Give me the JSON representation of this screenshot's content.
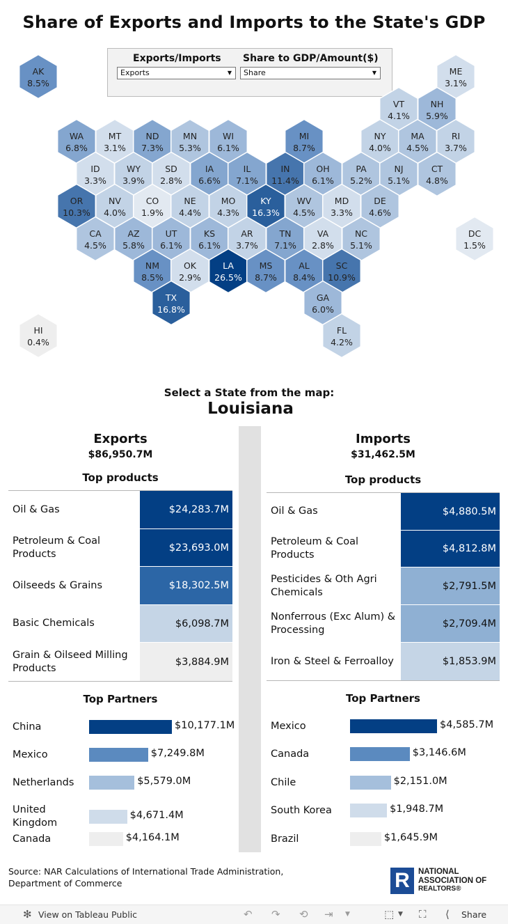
{
  "title": "Share of Exports and Imports to the State's GDP",
  "filters": {
    "flow_label": "Exports/Imports",
    "flow_value": "Exports",
    "measure_label": "Share to GDP/Amount($)",
    "measure_value": "Share"
  },
  "colors": {
    "darkest": "#033f84",
    "dark": "#2c66a6",
    "mid": "#5b8abf",
    "light_mid": "#8fb0d3",
    "light": "#c5d5e6",
    "lightest": "#eeeeee"
  },
  "chart_data": [
    {
      "type": "hex-map",
      "title": "Share of Exports and Imports to the State's GDP",
      "measure": "Exports share of GDP",
      "states": [
        {
          "abbr": "AK",
          "value": "8.5%"
        },
        {
          "abbr": "ME",
          "value": "3.1%"
        },
        {
          "abbr": "VT",
          "value": "4.1%"
        },
        {
          "abbr": "NH",
          "value": "5.9%"
        },
        {
          "abbr": "WA",
          "value": "6.8%"
        },
        {
          "abbr": "MT",
          "value": "3.1%"
        },
        {
          "abbr": "ND",
          "value": "7.3%"
        },
        {
          "abbr": "MN",
          "value": "5.3%"
        },
        {
          "abbr": "WI",
          "value": "6.1%"
        },
        {
          "abbr": "MI",
          "value": "8.7%"
        },
        {
          "abbr": "NY",
          "value": "4.0%"
        },
        {
          "abbr": "MA",
          "value": "4.5%"
        },
        {
          "abbr": "RI",
          "value": "3.7%"
        },
        {
          "abbr": "ID",
          "value": "3.3%"
        },
        {
          "abbr": "WY",
          "value": "3.9%"
        },
        {
          "abbr": "SD",
          "value": "2.8%"
        },
        {
          "abbr": "IA",
          "value": "6.6%"
        },
        {
          "abbr": "IL",
          "value": "7.1%"
        },
        {
          "abbr": "IN",
          "value": "11.4%"
        },
        {
          "abbr": "OH",
          "value": "6.1%"
        },
        {
          "abbr": "PA",
          "value": "5.2%"
        },
        {
          "abbr": "NJ",
          "value": "5.1%"
        },
        {
          "abbr": "CT",
          "value": "4.8%"
        },
        {
          "abbr": "OR",
          "value": "10.3%"
        },
        {
          "abbr": "NV",
          "value": "4.0%"
        },
        {
          "abbr": "CO",
          "value": "1.9%"
        },
        {
          "abbr": "NE",
          "value": "4.4%"
        },
        {
          "abbr": "MO",
          "value": "4.3%"
        },
        {
          "abbr": "KY",
          "value": "16.3%"
        },
        {
          "abbr": "WV",
          "value": "4.5%"
        },
        {
          "abbr": "MD",
          "value": "3.3%"
        },
        {
          "abbr": "DE",
          "value": "4.6%"
        },
        {
          "abbr": "DC",
          "value": "1.5%"
        },
        {
          "abbr": "CA",
          "value": "4.5%"
        },
        {
          "abbr": "AZ",
          "value": "5.8%"
        },
        {
          "abbr": "UT",
          "value": "6.1%"
        },
        {
          "abbr": "KS",
          "value": "6.1%"
        },
        {
          "abbr": "AR",
          "value": "3.7%"
        },
        {
          "abbr": "TN",
          "value": "7.1%"
        },
        {
          "abbr": "VA",
          "value": "2.8%"
        },
        {
          "abbr": "NC",
          "value": "5.1%"
        },
        {
          "abbr": "NM",
          "value": "8.5%"
        },
        {
          "abbr": "OK",
          "value": "2.9%"
        },
        {
          "abbr": "LA",
          "value": "26.5%"
        },
        {
          "abbr": "MS",
          "value": "8.7%"
        },
        {
          "abbr": "AL",
          "value": "8.4%"
        },
        {
          "abbr": "SC",
          "value": "10.9%"
        },
        {
          "abbr": "TX",
          "value": "16.8%"
        },
        {
          "abbr": "GA",
          "value": "6.0%"
        },
        {
          "abbr": "HI",
          "value": "0.4%"
        },
        {
          "abbr": "FL",
          "value": "4.2%"
        }
      ]
    },
    {
      "type": "table",
      "title": "Exports Top products",
      "unit": "$M",
      "rows": [
        {
          "label": "Oil & Gas",
          "value": 24283.7,
          "display": "$24,283.7M"
        },
        {
          "label": "Petroleum & Coal Products",
          "value": 23693.0,
          "display": "$23,693.0M"
        },
        {
          "label": "Oilseeds & Grains",
          "value": 18302.5,
          "display": "$18,302.5M"
        },
        {
          "label": "Basic Chemicals",
          "value": 6098.7,
          "display": "$6,098.7M"
        },
        {
          "label": "Grain & Oilseed Milling Products",
          "value": 3884.9,
          "display": "$3,884.9M"
        }
      ]
    },
    {
      "type": "table",
      "title": "Imports Top products",
      "unit": "$M",
      "rows": [
        {
          "label": "Oil & Gas",
          "value": 4880.5,
          "display": "$4,880.5M"
        },
        {
          "label": "Petroleum & Coal Products",
          "value": 4812.8,
          "display": "$4,812.8M"
        },
        {
          "label": "Pesticides & Oth Agri Chemicals",
          "value": 2791.5,
          "display": "$2,791.5M"
        },
        {
          "label": "Nonferrous (Exc Alum) & Processing",
          "value": 2709.4,
          "display": "$2,709.4M"
        },
        {
          "label": "Iron & Steel & Ferroalloy",
          "value": 1853.9,
          "display": "$1,853.9M"
        }
      ]
    },
    {
      "type": "bar",
      "title": "Exports Top Partners",
      "unit": "$M",
      "categories": [
        "China",
        "Mexico",
        "Netherlands",
        "United Kingdom",
        "Canada"
      ],
      "values": [
        10177.1,
        7249.8,
        5579.0,
        4671.4,
        4164.1
      ],
      "labels": [
        "$10,177.1M",
        "$7,249.8M",
        "$5,579.0M",
        "$4,671.4M",
        "$4,164.1M"
      ],
      "max": 10177.1
    },
    {
      "type": "bar",
      "title": "Imports Top Partners",
      "unit": "$M",
      "categories": [
        "Mexico",
        "Canada",
        "Chile",
        "South Korea",
        "Brazil"
      ],
      "values": [
        4585.7,
        3146.6,
        2151.0,
        1948.7,
        1645.9
      ],
      "labels": [
        "$4,585.7M",
        "$3,146.6M",
        "$2,151.0M",
        "$1,948.7M",
        "$1,645.9M"
      ],
      "max": 4585.7
    }
  ],
  "selection": {
    "caption": "Select a State from the map:",
    "state": "Louisiana"
  },
  "exports": {
    "heading": "Exports",
    "total": "$86,950.7M",
    "products_heading": "Top products",
    "partners_heading": "Top Partners"
  },
  "imports": {
    "heading": "Imports",
    "total": "$31,462.5M",
    "products_heading": "Top products",
    "partners_heading": "Top Partners"
  },
  "source": "Source: NAR Calculations of International Trade Administration, Department of Commerce",
  "logo": {
    "letter": "R",
    "line1": "NATIONAL",
    "line2": "ASSOCIATION OF",
    "line3": "REALTORS®",
    "icon": "nar-logo-icon"
  },
  "toolbar": {
    "view_label": "View on Tableau Public",
    "share_label": "Share"
  }
}
